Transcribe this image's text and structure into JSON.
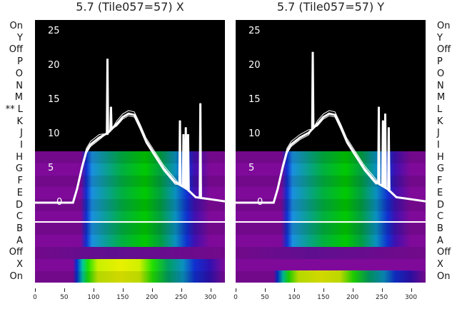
{
  "panels": [
    {
      "title": "5.7 (Tile057=57) X",
      "row_labels": [
        "On",
        "Y",
        "Off",
        "P",
        "O",
        "N",
        "M",
        "** L",
        "K",
        "J",
        "I",
        "H",
        "G",
        "F",
        "E",
        "D",
        "C",
        "B",
        "A",
        "Off",
        "X",
        "On"
      ],
      "spikes": [
        [
          124,
          21
        ],
        [
          130,
          14
        ],
        [
          248,
          12
        ],
        [
          254,
          10
        ],
        [
          258,
          11
        ],
        [
          262,
          10
        ],
        [
          283,
          14.5
        ]
      ]
    },
    {
      "title": "5.7 (Tile057=57) Y",
      "row_labels": [
        "On",
        "Y",
        "Off",
        "P",
        "O",
        "N",
        "M",
        "L",
        "K",
        "J",
        "I",
        "H",
        "G",
        "F",
        "E",
        "D",
        "C",
        "B",
        "A",
        "Off",
        "X",
        "On"
      ],
      "spikes": [
        [
          132,
          22
        ],
        [
          245,
          14
        ],
        [
          252,
          12
        ],
        [
          256,
          13
        ],
        [
          262,
          11
        ]
      ]
    }
  ],
  "chart_data": {
    "type": "line",
    "title": [
      "5.7 (Tile057=57) X",
      "5.7 (Tile057=57) Y"
    ],
    "x_ticks": [
      0,
      50,
      100,
      150,
      200,
      250,
      300
    ],
    "y_ticks": [
      0,
      5,
      10,
      15,
      20,
      25
    ],
    "xlim": [
      0,
      325
    ],
    "ylim": [
      -11,
      26.5
    ],
    "x": [
      0,
      65,
      72,
      80,
      88,
      95,
      110,
      125,
      140,
      150,
      160,
      170,
      180,
      190,
      205,
      220,
      240,
      260,
      275,
      300,
      325
    ],
    "y": [
      0,
      0,
      2,
      5,
      7.5,
      8.5,
      9.5,
      10.2,
      11.5,
      12.5,
      13,
      12.8,
      11,
      9,
      7,
      5,
      3,
      2,
      0.8,
      0.5,
      0.2
    ],
    "heatmap_rows": [
      "H",
      "G",
      "F",
      "E",
      "D",
      "C",
      "B",
      "A",
      "Off",
      "X",
      "On"
    ]
  },
  "colors": {
    "purple": "#7f0a9a",
    "line": "#ffffff"
  }
}
